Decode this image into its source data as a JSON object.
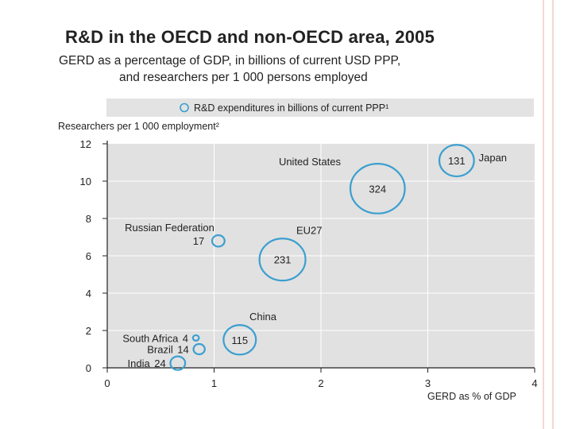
{
  "slide": {
    "accent_color": "#f3d9cf"
  },
  "chart_data": {
    "type": "scatter",
    "title": "R&D in the OECD and non-OECD area, 2005",
    "subtitle_line1": "GERD as a percentage of GDP, in billions of current USD PPP,",
    "subtitle_line2": "and researchers per 1 000 persons employed",
    "legend": {
      "marker": "circle-icon",
      "label": "R&D expenditures in billions of current PPP¹",
      "placement": "top"
    },
    "xlabel": "GERD as % of GDP",
    "ylabel": "Researchers per 1 000 employment²",
    "xlim": [
      0,
      4
    ],
    "ylim": [
      0,
      12
    ],
    "xticks": [
      0,
      1,
      2,
      3,
      4
    ],
    "yticks": [
      0,
      2,
      4,
      6,
      8,
      10,
      12
    ],
    "grid": true,
    "bubble_color": "#3b9fd0",
    "points": [
      {
        "name": "Japan",
        "x": 3.27,
        "y": 11.1,
        "value": 131,
        "value_label": "131",
        "label_side": "right"
      },
      {
        "name": "United States",
        "x": 2.53,
        "y": 9.6,
        "value": 324,
        "value_label": "324",
        "label_side": "top-left"
      },
      {
        "name": "EU27",
        "x": 1.64,
        "y": 5.8,
        "value": 231,
        "value_label": "231",
        "label_side": "top-right"
      },
      {
        "name": "Russian Federation",
        "x": 1.04,
        "y": 6.8,
        "value": 17,
        "value_label": "17",
        "label_side": "left-above"
      },
      {
        "name": "China",
        "x": 1.24,
        "y": 1.5,
        "value": 115,
        "value_label": "115",
        "label_side": "top-right"
      },
      {
        "name": "South Africa",
        "x": 0.83,
        "y": 1.6,
        "value": 4,
        "value_label": "4",
        "label_side": "left"
      },
      {
        "name": "Brazil",
        "x": 0.86,
        "y": 1.0,
        "value": 14,
        "value_label": "14",
        "label_side": "left"
      },
      {
        "name": "India",
        "x": 0.66,
        "y": 0.25,
        "value": 24,
        "value_label": "24",
        "label_side": "left"
      }
    ]
  }
}
